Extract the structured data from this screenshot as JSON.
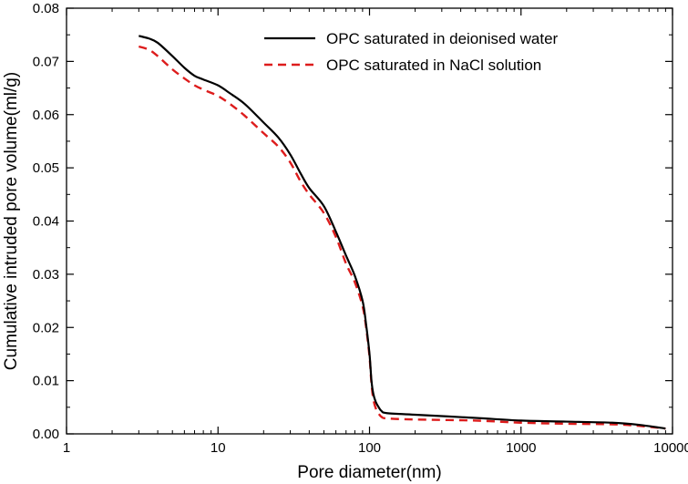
{
  "chart_data": {
    "type": "line",
    "title": "",
    "xlabel": "Pore diameter(nm)",
    "ylabel": "Cumulative intruded pore volume(ml/g)",
    "xscale": "log",
    "xlim": [
      1,
      10000
    ],
    "ylim": [
      0,
      0.08
    ],
    "x_ticks": [
      1,
      10,
      100,
      1000,
      10000
    ],
    "x_tick_labels": [
      "1",
      "10",
      "100",
      "1000",
      "10000"
    ],
    "y_ticks": [
      0,
      0.01,
      0.02,
      0.03,
      0.04,
      0.05,
      0.06,
      0.07,
      0.08
    ],
    "y_tick_labels": [
      "0.00",
      "0.01",
      "0.02",
      "0.03",
      "0.04",
      "0.05",
      "0.06",
      "0.07",
      "0.08"
    ],
    "grid": false,
    "legend_position": "top-right",
    "series": [
      {
        "name": "OPC saturated in deionised water",
        "color": "#000000",
        "style": "solid",
        "x": [
          3.0,
          3.5,
          4.0,
          5.0,
          6.0,
          7.0,
          8.0,
          10.0,
          12.0,
          15.0,
          20.0,
          25.0,
          30.0,
          35.0,
          40.0,
          50.0,
          60.0,
          70.0,
          80.0,
          90.0,
          95.0,
          100.0,
          103.0,
          106.0,
          110.0,
          115.0,
          120.0,
          130.0,
          200.0,
          500.0,
          1000.0,
          2000.0,
          4000.0,
          6000.0,
          9000.0
        ],
        "values": [
          0.0748,
          0.0743,
          0.0735,
          0.071,
          0.0688,
          0.0673,
          0.0666,
          0.0655,
          0.064,
          0.062,
          0.0585,
          0.0557,
          0.0525,
          0.049,
          0.0462,
          0.0428,
          0.038,
          0.0335,
          0.0297,
          0.025,
          0.0205,
          0.015,
          0.01,
          0.0075,
          0.006,
          0.005,
          0.0043,
          0.0039,
          0.0036,
          0.003,
          0.0025,
          0.0023,
          0.0021,
          0.0017,
          0.001
        ]
      },
      {
        "name": "OPC saturated in NaCl solution",
        "color": "#dd1c1c",
        "style": "dashed",
        "x": [
          3.0,
          3.5,
          4.0,
          5.0,
          6.0,
          7.0,
          8.0,
          10.0,
          12.0,
          15.0,
          20.0,
          25.0,
          30.0,
          35.0,
          40.0,
          50.0,
          60.0,
          70.0,
          80.0,
          90.0,
          95.0,
          100.0,
          103.0,
          106.0,
          110.0,
          115.0,
          120.0,
          130.0,
          200.0,
          500.0,
          1000.0,
          2000.0,
          4000.0,
          6000.0,
          9000.0
        ],
        "values": [
          0.0728,
          0.0722,
          0.071,
          0.0685,
          0.0668,
          0.0655,
          0.0647,
          0.0635,
          0.062,
          0.0598,
          0.0565,
          0.054,
          0.051,
          0.0475,
          0.045,
          0.0415,
          0.037,
          0.032,
          0.0285,
          0.024,
          0.02,
          0.0145,
          0.0095,
          0.0065,
          0.0048,
          0.0038,
          0.0032,
          0.0029,
          0.0027,
          0.0025,
          0.0021,
          0.0019,
          0.0018,
          0.0015,
          0.001
        ]
      }
    ]
  }
}
